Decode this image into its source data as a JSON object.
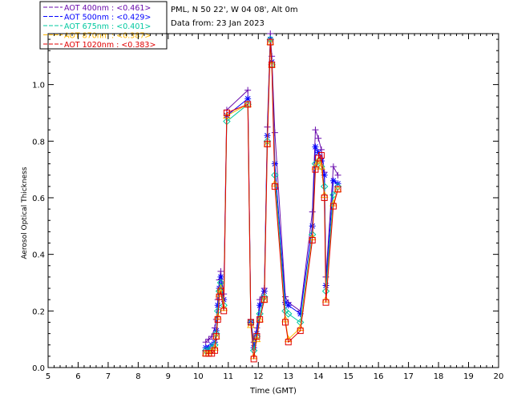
{
  "header": {
    "station": "PML, N 50 22', W 04 08', Alt 0m",
    "date": "Data from: 23 Jan 2023"
  },
  "chart_data": {
    "type": "line",
    "xlabel": "Time (GMT)",
    "ylabel": "Aerosol Optical Thickness",
    "xlim": [
      5,
      20
    ],
    "ylim": [
      0,
      1.18
    ],
    "xticks": [
      5,
      6,
      7,
      8,
      9,
      10,
      11,
      12,
      13,
      14,
      15,
      16,
      17,
      18,
      19,
      20
    ],
    "yticks": [
      0.0,
      0.2,
      0.4,
      0.6,
      0.8,
      1.0
    ],
    "legend_position": "top-left",
    "x": [
      10.25,
      10.35,
      10.45,
      10.55,
      10.6,
      10.65,
      10.7,
      10.75,
      10.85,
      10.95,
      11.65,
      11.75,
      11.85,
      11.95,
      12.05,
      12.2,
      12.3,
      12.4,
      12.45,
      12.55,
      12.9,
      13.0,
      13.4,
      13.8,
      13.9,
      14.0,
      14.1,
      14.2,
      14.25,
      14.5,
      14.65
    ],
    "series": [
      {
        "name": "AOT  400nm : <0.461>",
        "color": "#6a0dad",
        "marker": "plus",
        "values": [
          0.09,
          0.1,
          0.11,
          0.14,
          0.17,
          0.24,
          0.31,
          0.34,
          0.26,
          0.91,
          0.98,
          0.17,
          0.09,
          0.14,
          0.24,
          0.28,
          0.85,
          1.18,
          1.1,
          0.83,
          0.25,
          0.23,
          0.2,
          0.55,
          0.84,
          0.81,
          0.77,
          0.69,
          0.32,
          0.71,
          0.68
        ]
      },
      {
        "name": "AOT  500nm : <0.429>",
        "color": "#0000ff",
        "marker": "star",
        "values": [
          0.07,
          0.07,
          0.08,
          0.09,
          0.13,
          0.22,
          0.28,
          0.32,
          0.24,
          0.89,
          0.95,
          0.16,
          0.07,
          0.12,
          0.22,
          0.27,
          0.82,
          1.16,
          1.08,
          0.72,
          0.23,
          0.22,
          0.19,
          0.5,
          0.78,
          0.76,
          0.73,
          0.68,
          0.29,
          0.66,
          0.65
        ]
      },
      {
        "name": "AOT  675nm : <0.401>",
        "color": "#00c8a0",
        "marker": "diamond",
        "values": [
          0.06,
          0.06,
          0.07,
          0.08,
          0.12,
          0.2,
          0.27,
          0.3,
          0.22,
          0.87,
          0.93,
          0.16,
          0.06,
          0.11,
          0.19,
          0.25,
          0.8,
          1.16,
          1.07,
          0.68,
          0.2,
          0.19,
          0.16,
          0.47,
          0.72,
          0.73,
          0.71,
          0.64,
          0.27,
          0.61,
          0.64
        ]
      },
      {
        "name": "AOT  870nm : <0.387>",
        "color": "#ffb400",
        "marker": "triangle",
        "values": [
          0.05,
          0.05,
          0.06,
          0.07,
          0.11,
          0.18,
          0.26,
          0.28,
          0.21,
          0.89,
          0.93,
          0.15,
          0.04,
          0.1,
          0.17,
          0.24,
          0.79,
          1.15,
          1.07,
          0.65,
          0.17,
          0.1,
          0.14,
          0.46,
          0.71,
          0.73,
          0.71,
          0.61,
          0.24,
          0.58,
          0.63
        ]
      },
      {
        "name": "AOT 1020nm : <0.383>",
        "color": "#e00000",
        "marker": "square",
        "values": [
          0.05,
          0.05,
          0.05,
          0.06,
          0.11,
          0.17,
          0.25,
          0.27,
          0.2,
          0.9,
          0.93,
          0.16,
          0.03,
          0.11,
          0.17,
          0.24,
          0.79,
          1.15,
          1.07,
          0.64,
          0.16,
          0.09,
          0.13,
          0.45,
          0.7,
          0.74,
          0.75,
          0.6,
          0.23,
          0.57,
          0.63
        ]
      }
    ]
  }
}
